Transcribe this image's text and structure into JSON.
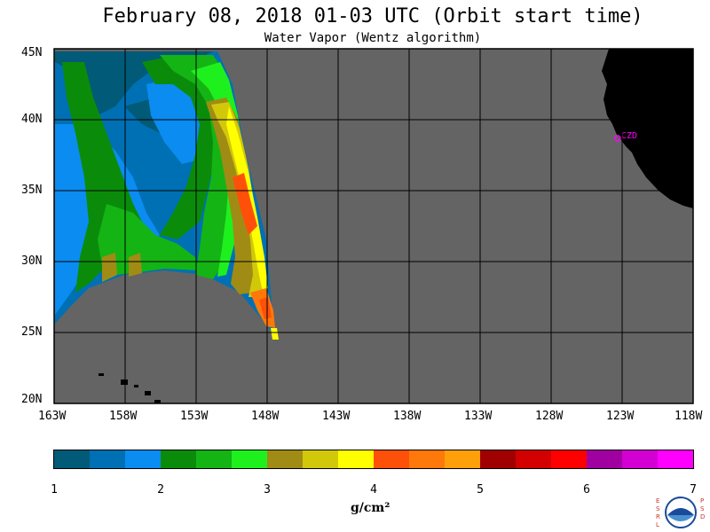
{
  "title": "February 08, 2018  01-03 UTC  (Orbit start time)",
  "subtitle": "Water Vapor (Wentz algorithm)",
  "lat_labels": [
    "45N",
    "40N",
    "35N",
    "30N",
    "25N",
    "20N"
  ],
  "lon_labels": [
    "163W",
    "158W",
    "153W",
    "148W",
    "143W",
    "138W",
    "133W",
    "128W",
    "123W",
    "118W"
  ],
  "station_label": "CZD",
  "colorbar": {
    "colors": [
      "#005a78",
      "#0070b4",
      "#0a8cf0",
      "#0a8c0a",
      "#14b414",
      "#1ef01e",
      "#a08c14",
      "#d2c80a",
      "#ffff00",
      "#ff500a",
      "#ff780a",
      "#ffa00a",
      "#a00000",
      "#d20000",
      "#ff0000",
      "#a000a0",
      "#d200d2",
      "#ff00ff"
    ],
    "tick_labels": [
      "1",
      "2",
      "3",
      "4",
      "5",
      "6",
      "7"
    ],
    "units": "g/cm²"
  },
  "colors": {
    "no_data": "#646464",
    "land": "#000000"
  },
  "logo": {
    "left_letters": "ESRL",
    "right_letters": "PSD",
    "name": "noaa-logo"
  }
}
